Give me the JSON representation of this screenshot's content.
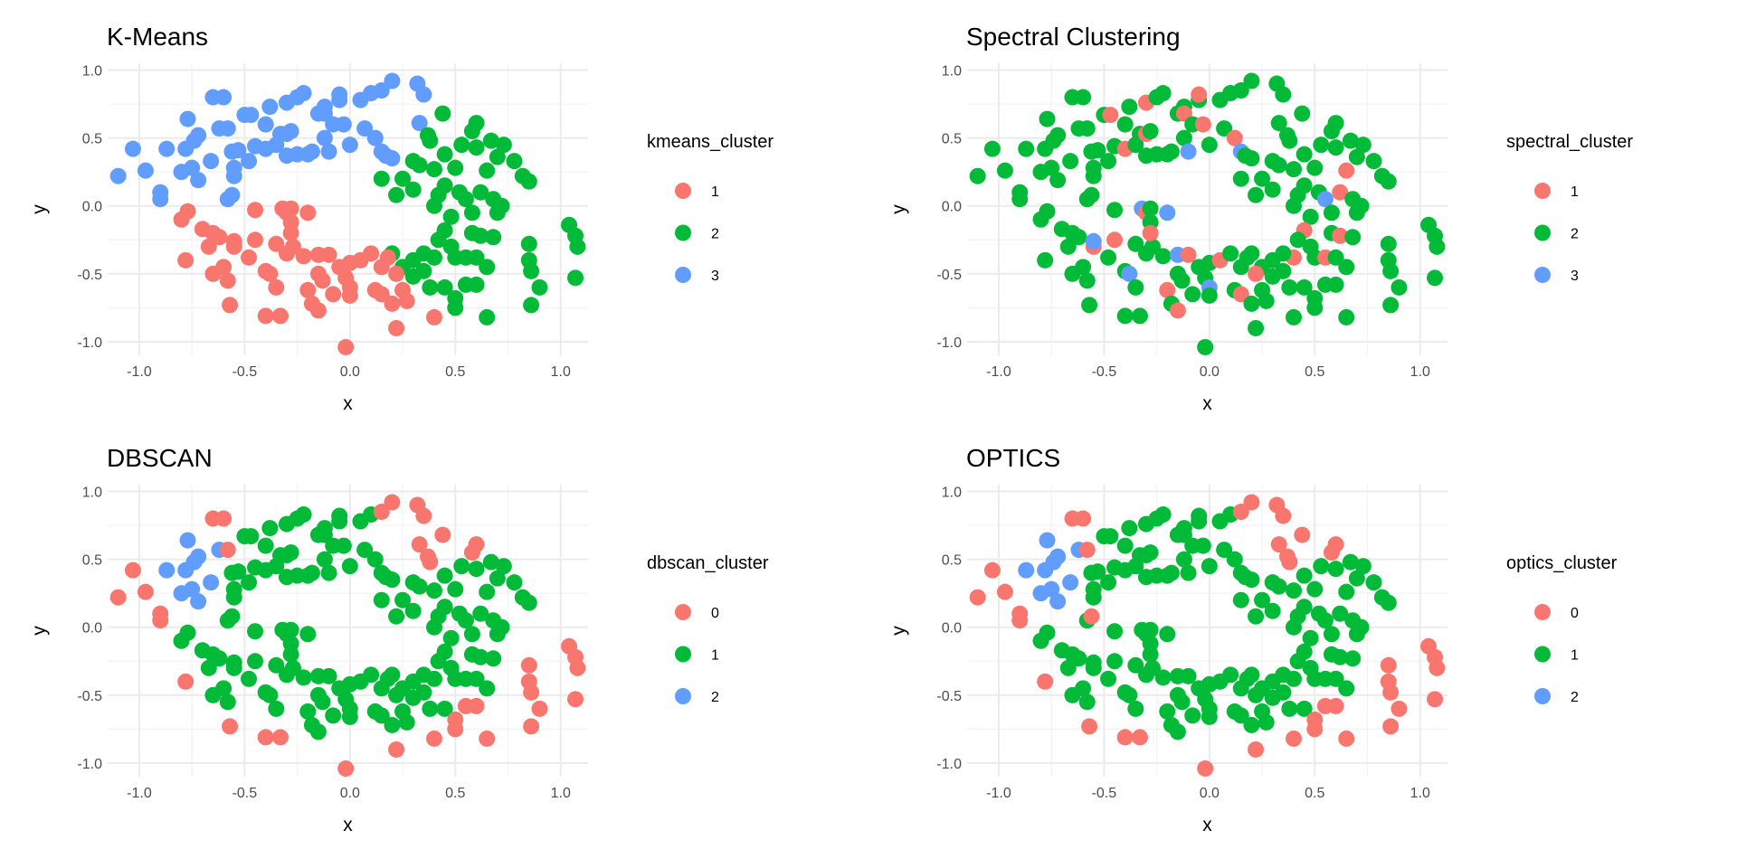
{
  "chart_data": [
    {
      "type": "scatter",
      "title": "K-Means",
      "xlabel": "x",
      "ylabel": "y",
      "legend_title": "kmeans_cluster",
      "legend": [
        "1",
        "2",
        "3"
      ],
      "label_column": 2,
      "legend_placement": "right"
    },
    {
      "type": "scatter",
      "title": "Spectral Clustering",
      "xlabel": "x",
      "ylabel": "y",
      "legend_title": "spectral_cluster",
      "legend": [
        "1",
        "2",
        "3"
      ],
      "label_column": 3,
      "legend_placement": "right"
    },
    {
      "type": "scatter",
      "title": "DBSCAN",
      "xlabel": "x",
      "ylabel": "y",
      "legend_title": "dbscan_cluster",
      "legend": [
        "0",
        "1",
        "2"
      ],
      "label_column": 4,
      "legend_placement": "right"
    },
    {
      "type": "scatter",
      "title": "OPTICS",
      "xlabel": "x",
      "ylabel": "y",
      "legend_title": "optics_cluster",
      "legend": [
        "0",
        "1",
        "2"
      ],
      "label_column": 5,
      "legend_placement": "right"
    }
  ],
  "shared": {
    "xlim": [
      -1.15,
      1.13
    ],
    "ylim": [
      -1.1,
      1.05
    ],
    "xticks": [
      -1.0,
      -0.5,
      0.0,
      0.5,
      1.0
    ],
    "yticks": [
      -1.0,
      -0.5,
      0.0,
      0.5,
      1.0
    ],
    "xtick_labels": [
      "-1.0",
      "-0.5",
      "0.0",
      "0.5",
      "1.0"
    ],
    "ytick_labels": [
      "-1.0",
      "-0.5",
      "0.0",
      "0.5",
      "1.0"
    ],
    "grid": true,
    "colors": [
      "#F8766D",
      "#00BA38",
      "#619CFF"
    ],
    "columns": [
      "x",
      "y",
      "kmeans_cluster",
      "spectral_cluster",
      "dbscan_cluster",
      "optics_cluster"
    ],
    "points": [
      [
        -1.1,
        0.22,
        3,
        2,
        0,
        0
      ],
      [
        -1.03,
        0.42,
        3,
        2,
        0,
        0
      ],
      [
        -0.97,
        0.26,
        3,
        2,
        0,
        0
      ],
      [
        -0.9,
        0.1,
        3,
        2,
        0,
        0
      ],
      [
        -0.9,
        0.05,
        3,
        2,
        0,
        0
      ],
      [
        -0.87,
        0.42,
        3,
        2,
        2,
        2
      ],
      [
        -0.8,
        0.25,
        3,
        2,
        2,
        2
      ],
      [
        -0.78,
        0.42,
        3,
        2,
        2,
        2
      ],
      [
        -0.77,
        0.64,
        3,
        2,
        2,
        2
      ],
      [
        -0.75,
        0.28,
        3,
        2,
        2,
        2
      ],
      [
        -0.74,
        0.48,
        3,
        2,
        2,
        2
      ],
      [
        -0.72,
        0.19,
        3,
        2,
        2,
        2
      ],
      [
        -0.72,
        0.52,
        3,
        2,
        2,
        2
      ],
      [
        -0.66,
        0.33,
        3,
        2,
        2,
        2
      ],
      [
        -0.65,
        0.8,
        3,
        2,
        0,
        0
      ],
      [
        -0.62,
        0.57,
        3,
        2,
        2,
        2
      ],
      [
        -0.6,
        0.8,
        3,
        2,
        0,
        0
      ],
      [
        -0.58,
        0.57,
        3,
        2,
        0,
        0
      ],
      [
        -0.56,
        0.4,
        3,
        2,
        1,
        1
      ],
      [
        -0.55,
        0.28,
        3,
        2,
        1,
        1
      ],
      [
        -0.55,
        0.22,
        3,
        2,
        1,
        1
      ],
      [
        -0.58,
        0.05,
        3,
        2,
        1,
        1
      ],
      [
        -0.56,
        0.08,
        3,
        2,
        1,
        0
      ],
      [
        -0.53,
        0.41,
        3,
        2,
        1,
        1
      ],
      [
        -0.5,
        0.67,
        3,
        2,
        1,
        1
      ],
      [
        -0.48,
        0.33,
        3,
        2,
        1,
        1
      ],
      [
        -0.45,
        0.44,
        3,
        2,
        1,
        1
      ],
      [
        -0.47,
        0.67,
        3,
        1,
        1,
        1
      ],
      [
        -0.4,
        0.42,
        3,
        1,
        1,
        1
      ],
      [
        -0.4,
        0.6,
        3,
        2,
        1,
        1
      ],
      [
        -0.38,
        0.73,
        3,
        2,
        1,
        1
      ],
      [
        -0.35,
        0.45,
        3,
        2,
        1,
        1
      ],
      [
        -0.33,
        0.53,
        3,
        2,
        1,
        1
      ],
      [
        -0.3,
        0.76,
        3,
        1,
        1,
        1
      ],
      [
        -0.3,
        0.53,
        3,
        1,
        1,
        1
      ],
      [
        -0.28,
        0.55,
        3,
        2,
        1,
        1
      ],
      [
        -0.25,
        0.8,
        3,
        2,
        1,
        1
      ],
      [
        -0.22,
        0.83,
        3,
        2,
        1,
        1
      ],
      [
        -0.2,
        0.38,
        3,
        2,
        1,
        1
      ],
      [
        -0.18,
        0.4,
        3,
        2,
        1,
        1
      ],
      [
        -0.15,
        0.68,
        3,
        2,
        1,
        1
      ],
      [
        -0.12,
        0.73,
        3,
        2,
        1,
        1
      ],
      [
        -0.12,
        0.68,
        3,
        1,
        1,
        1
      ],
      [
        -0.12,
        0.5,
        3,
        2,
        1,
        1
      ],
      [
        -0.1,
        0.4,
        3,
        3,
        1,
        1
      ],
      [
        -0.08,
        0.6,
        3,
        2,
        1,
        1
      ],
      [
        -0.05,
        0.78,
        3,
        2,
        1,
        1
      ],
      [
        -0.05,
        0.82,
        3,
        1,
        1,
        1
      ],
      [
        -0.03,
        0.6,
        3,
        1,
        1,
        1
      ],
      [
        0.0,
        0.45,
        3,
        2,
        1,
        1
      ],
      [
        0.05,
        0.78,
        3,
        2,
        1,
        1
      ],
      [
        0.07,
        0.57,
        3,
        2,
        1,
        1
      ],
      [
        0.1,
        0.83,
        3,
        2,
        1,
        1
      ],
      [
        0.12,
        0.5,
        3,
        1,
        1,
        1
      ],
      [
        0.15,
        0.85,
        3,
        2,
        0,
        0
      ],
      [
        0.15,
        0.4,
        3,
        3,
        1,
        1
      ],
      [
        0.17,
        0.37,
        3,
        2,
        1,
        1
      ],
      [
        0.2,
        0.92,
        3,
        2,
        0,
        0
      ],
      [
        0.2,
        0.35,
        3,
        2,
        1,
        1
      ],
      [
        0.32,
        0.9,
        3,
        2,
        0,
        0
      ],
      [
        0.35,
        0.82,
        3,
        2,
        0,
        0
      ],
      [
        0.33,
        0.61,
        3,
        2,
        0,
        0
      ],
      [
        -0.3,
        0.37,
        3,
        2,
        1,
        1
      ],
      [
        -0.25,
        0.38,
        3,
        2,
        1,
        1
      ],
      [
        0.44,
        0.68,
        2,
        2,
        0,
        0
      ],
      [
        0.37,
        0.52,
        2,
        2,
        0,
        0
      ],
      [
        0.38,
        0.48,
        2,
        2,
        0,
        0
      ],
      [
        0.3,
        0.33,
        2,
        2,
        1,
        1
      ],
      [
        0.15,
        0.2,
        2,
        2,
        1,
        1
      ],
      [
        0.25,
        0.2,
        2,
        2,
        1,
        1
      ],
      [
        0.22,
        0.08,
        2,
        2,
        1,
        1
      ],
      [
        0.3,
        0.12,
        2,
        2,
        1,
        1
      ],
      [
        0.33,
        0.3,
        2,
        2,
        1,
        1
      ],
      [
        0.4,
        0.27,
        2,
        2,
        1,
        1
      ],
      [
        0.45,
        0.38,
        2,
        2,
        1,
        1
      ],
      [
        0.5,
        0.28,
        2,
        2,
        1,
        1
      ],
      [
        0.53,
        0.45,
        2,
        2,
        1,
        1
      ],
      [
        0.58,
        0.55,
        2,
        2,
        0,
        0
      ],
      [
        0.6,
        0.61,
        2,
        2,
        0,
        0
      ],
      [
        0.6,
        0.43,
        2,
        2,
        1,
        1
      ],
      [
        0.65,
        0.26,
        2,
        1,
        1,
        1
      ],
      [
        0.67,
        0.48,
        2,
        2,
        1,
        1
      ],
      [
        0.7,
        0.36,
        2,
        2,
        1,
        1
      ],
      [
        0.73,
        0.45,
        2,
        2,
        1,
        1
      ],
      [
        0.78,
        0.33,
        2,
        2,
        1,
        1
      ],
      [
        0.82,
        0.22,
        2,
        2,
        1,
        1
      ],
      [
        0.85,
        0.18,
        2,
        2,
        1,
        1
      ],
      [
        0.45,
        0.15,
        2,
        2,
        1,
        1
      ],
      [
        0.42,
        0.08,
        2,
        2,
        1,
        1
      ],
      [
        0.4,
        0.0,
        2,
        2,
        1,
        1
      ],
      [
        0.48,
        -0.08,
        2,
        2,
        1,
        1
      ],
      [
        0.52,
        0.1,
        2,
        2,
        1,
        1
      ],
      [
        0.55,
        0.05,
        2,
        3,
        1,
        1
      ],
      [
        0.58,
        -0.05,
        2,
        2,
        1,
        1
      ],
      [
        0.62,
        0.1,
        2,
        1,
        1,
        1
      ],
      [
        0.68,
        0.05,
        2,
        2,
        1,
        1
      ],
      [
        0.72,
        0.0,
        2,
        2,
        1,
        1
      ],
      [
        0.45,
        -0.18,
        2,
        1,
        1,
        1
      ],
      [
        0.42,
        -0.25,
        2,
        2,
        1,
        1
      ],
      [
        0.4,
        -0.38,
        2,
        1,
        1,
        1
      ],
      [
        0.35,
        -0.35,
        2,
        2,
        1,
        1
      ],
      [
        0.3,
        -0.4,
        2,
        2,
        1,
        1
      ],
      [
        0.25,
        -0.45,
        2,
        2,
        1,
        1
      ],
      [
        0.2,
        -0.35,
        2,
        2,
        1,
        1
      ],
      [
        0.48,
        -0.3,
        2,
        2,
        1,
        1
      ],
      [
        0.5,
        -0.38,
        2,
        2,
        1,
        1
      ],
      [
        0.55,
        -0.38,
        2,
        1,
        1,
        1
      ],
      [
        0.6,
        -0.38,
        2,
        2,
        1,
        1
      ],
      [
        0.58,
        -0.2,
        2,
        2,
        1,
        1
      ],
      [
        0.62,
        -0.22,
        2,
        1,
        1,
        1
      ],
      [
        0.65,
        -0.45,
        2,
        2,
        1,
        1
      ],
      [
        0.68,
        -0.23,
        2,
        2,
        1,
        1
      ],
      [
        0.7,
        -0.05,
        2,
        2,
        1,
        1
      ],
      [
        0.45,
        -0.6,
        2,
        2,
        1,
        1
      ],
      [
        0.5,
        -0.68,
        2,
        2,
        0,
        0
      ],
      [
        0.5,
        -0.75,
        2,
        2,
        0,
        0
      ],
      [
        0.55,
        -0.58,
        2,
        2,
        0,
        0
      ],
      [
        0.6,
        -0.58,
        2,
        2,
        0,
        0
      ],
      [
        0.38,
        -0.6,
        2,
        2,
        1,
        1
      ],
      [
        0.65,
        -0.82,
        2,
        2,
        0,
        0
      ],
      [
        0.85,
        -0.28,
        2,
        2,
        0,
        0
      ],
      [
        0.85,
        -0.4,
        2,
        2,
        0,
        0
      ],
      [
        0.86,
        -0.48,
        2,
        2,
        0,
        0
      ],
      [
        0.86,
        -0.73,
        2,
        2,
        0,
        0
      ],
      [
        0.9,
        -0.6,
        2,
        2,
        0,
        0
      ],
      [
        1.04,
        -0.14,
        2,
        2,
        0,
        0
      ],
      [
        1.07,
        -0.22,
        2,
        2,
        0,
        0
      ],
      [
        1.08,
        -0.3,
        2,
        2,
        0,
        0
      ],
      [
        1.07,
        -0.53,
        2,
        2,
        0,
        0
      ],
      [
        0.3,
        -0.52,
        2,
        2,
        1,
        1
      ],
      [
        0.35,
        -0.48,
        2,
        2,
        1,
        1
      ],
      [
        -0.77,
        -0.04,
        1,
        2,
        1,
        1
      ],
      [
        -0.8,
        -0.1,
        1,
        2,
        1,
        1
      ],
      [
        -0.78,
        -0.4,
        1,
        2,
        0,
        0
      ],
      [
        -0.7,
        -0.17,
        1,
        2,
        1,
        1
      ],
      [
        -0.65,
        -0.2,
        1,
        2,
        1,
        1
      ],
      [
        -0.67,
        -0.3,
        1,
        2,
        1,
        1
      ],
      [
        -0.62,
        -0.23,
        1,
        2,
        1,
        1
      ],
      [
        -0.65,
        -0.5,
        1,
        2,
        1,
        1
      ],
      [
        -0.6,
        -0.45,
        1,
        2,
        1,
        1
      ],
      [
        -0.58,
        -0.55,
        1,
        2,
        1,
        1
      ],
      [
        -0.57,
        -0.73,
        1,
        2,
        0,
        0
      ],
      [
        -0.55,
        -0.3,
        1,
        1,
        1,
        1
      ],
      [
        -0.55,
        -0.26,
        1,
        3,
        1,
        1
      ],
      [
        -0.48,
        -0.38,
        1,
        2,
        1,
        1
      ],
      [
        -0.45,
        -0.25,
        1,
        1,
        1,
        1
      ],
      [
        -0.45,
        -0.03,
        1,
        2,
        1,
        1
      ],
      [
        -0.4,
        -0.48,
        1,
        2,
        1,
        1
      ],
      [
        -0.38,
        -0.5,
        1,
        3,
        1,
        1
      ],
      [
        -0.35,
        -0.6,
        1,
        2,
        1,
        1
      ],
      [
        -0.4,
        -0.81,
        1,
        2,
        0,
        0
      ],
      [
        -0.33,
        -0.81,
        1,
        2,
        0,
        0
      ],
      [
        -0.35,
        -0.28,
        1,
        2,
        1,
        1
      ],
      [
        -0.32,
        -0.02,
        1,
        3,
        1,
        1
      ],
      [
        -0.3,
        -0.05,
        1,
        1,
        1,
        1
      ],
      [
        -0.28,
        -0.02,
        1,
        2,
        1,
        1
      ],
      [
        -0.3,
        -0.35,
        1,
        2,
        1,
        1
      ],
      [
        -0.28,
        -0.12,
        1,
        2,
        1,
        1
      ],
      [
        -0.27,
        -0.3,
        1,
        2,
        1,
        1
      ],
      [
        -0.28,
        -0.2,
        1,
        1,
        1,
        1
      ],
      [
        -0.22,
        -0.37,
        1,
        2,
        1,
        1
      ],
      [
        -0.2,
        -0.05,
        1,
        3,
        1,
        1
      ],
      [
        -0.2,
        -0.62,
        1,
        1,
        1,
        1
      ],
      [
        -0.18,
        -0.72,
        1,
        2,
        1,
        1
      ],
      [
        -0.15,
        -0.5,
        1,
        2,
        1,
        1
      ],
      [
        -0.15,
        -0.36,
        1,
        3,
        1,
        1
      ],
      [
        -0.13,
        -0.55,
        1,
        2,
        1,
        1
      ],
      [
        -0.15,
        -0.77,
        1,
        1,
        1,
        1
      ],
      [
        -0.1,
        -0.36,
        1,
        1,
        1,
        1
      ],
      [
        -0.08,
        -0.65,
        1,
        2,
        1,
        1
      ],
      [
        -0.05,
        -0.45,
        1,
        2,
        1,
        1
      ],
      [
        -0.02,
        -0.53,
        1,
        2,
        1,
        1
      ],
      [
        0.0,
        -0.42,
        1,
        2,
        1,
        1
      ],
      [
        0.0,
        -0.6,
        1,
        3,
        1,
        1
      ],
      [
        0.0,
        -0.66,
        1,
        2,
        1,
        1
      ],
      [
        0.05,
        -0.4,
        1,
        1,
        1,
        1
      ],
      [
        -0.02,
        -1.04,
        1,
        2,
        0,
        0
      ],
      [
        0.1,
        -0.35,
        1,
        2,
        1,
        1
      ],
      [
        0.12,
        -0.62,
        1,
        2,
        1,
        1
      ],
      [
        0.15,
        -0.45,
        1,
        2,
        1,
        1
      ],
      [
        0.15,
        -0.65,
        1,
        1,
        1,
        1
      ],
      [
        0.18,
        -0.38,
        1,
        2,
        1,
        1
      ],
      [
        0.2,
        -0.72,
        1,
        2,
        1,
        1
      ],
      [
        0.22,
        -0.5,
        1,
        1,
        1,
        1
      ],
      [
        0.22,
        -0.9,
        1,
        2,
        0,
        0
      ],
      [
        0.25,
        -0.62,
        1,
        2,
        1,
        1
      ],
      [
        0.27,
        -0.7,
        1,
        2,
        1,
        1
      ],
      [
        0.4,
        -0.82,
        1,
        2,
        0,
        0
      ]
    ]
  }
}
